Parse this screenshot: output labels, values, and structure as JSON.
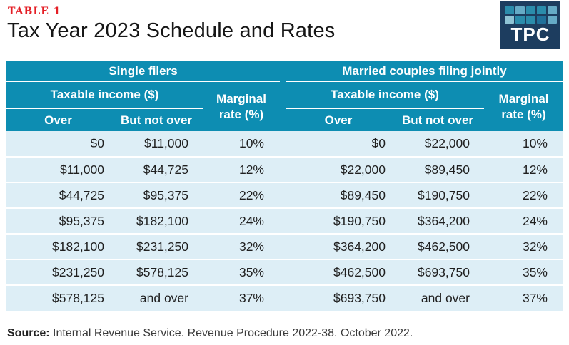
{
  "header": {
    "kicker": "TABLE 1",
    "title": "Tax Year 2023 Schedule and Rates",
    "logo_text": "TPC"
  },
  "chart_data": {
    "type": "table",
    "title": "Tax Year 2023 Schedule and Rates",
    "table_number": "TABLE 1",
    "groups": [
      {
        "title": "Single filers",
        "taxable_income_label": "Taxable income ($)",
        "marginal_rate_label": "Marginal rate (%)",
        "over_label": "Over",
        "but_not_over_label": "But not over",
        "rows": [
          [
            "$0",
            "$11,000",
            "10%"
          ],
          [
            "$11,000",
            "$44,725",
            "12%"
          ],
          [
            "$44,725",
            "$95,375",
            "22%"
          ],
          [
            "$95,375",
            "$182,100",
            "24%"
          ],
          [
            "$182,100",
            "$231,250",
            "32%"
          ],
          [
            "$231,250",
            "$578,125",
            "35%"
          ],
          [
            "$578,125",
            "and over",
            "37%"
          ]
        ]
      },
      {
        "title": "Married couples filing jointly",
        "taxable_income_label": "Taxable income ($)",
        "marginal_rate_label": "Marginal rate (%)",
        "over_label": "Over",
        "but_not_over_label": "But not over",
        "rows": [
          [
            "$0",
            "$22,000",
            "10%"
          ],
          [
            "$22,000",
            "$89,450",
            "12%"
          ],
          [
            "$89,450",
            "$190,750",
            "22%"
          ],
          [
            "$190,750",
            "$364,200",
            "24%"
          ],
          [
            "$364,200",
            "$462,500",
            "32%"
          ],
          [
            "$462,500",
            "$693,750",
            "35%"
          ],
          [
            "$693,750",
            "and over",
            "37%"
          ]
        ]
      }
    ],
    "source": "Internal Revenue Service. Revenue Procedure 2022-38. October 2022."
  },
  "footer": {
    "source_label": "Source:",
    "source_text": "Internal Revenue Service. Revenue Procedure 2022-38. October 2022."
  },
  "colors": {
    "header_teal": "#0d8db2",
    "row_blue": "#ddeef6",
    "kicker_red": "#e41e25",
    "title_black": "#161616",
    "logo_navy": "#1d3d5f",
    "logo_square_teal": "#2b8cab",
    "logo_square_light": "#66abc6",
    "logo_square_pale": "#8fc3d4",
    "logo_square_dark": "#20709a"
  }
}
